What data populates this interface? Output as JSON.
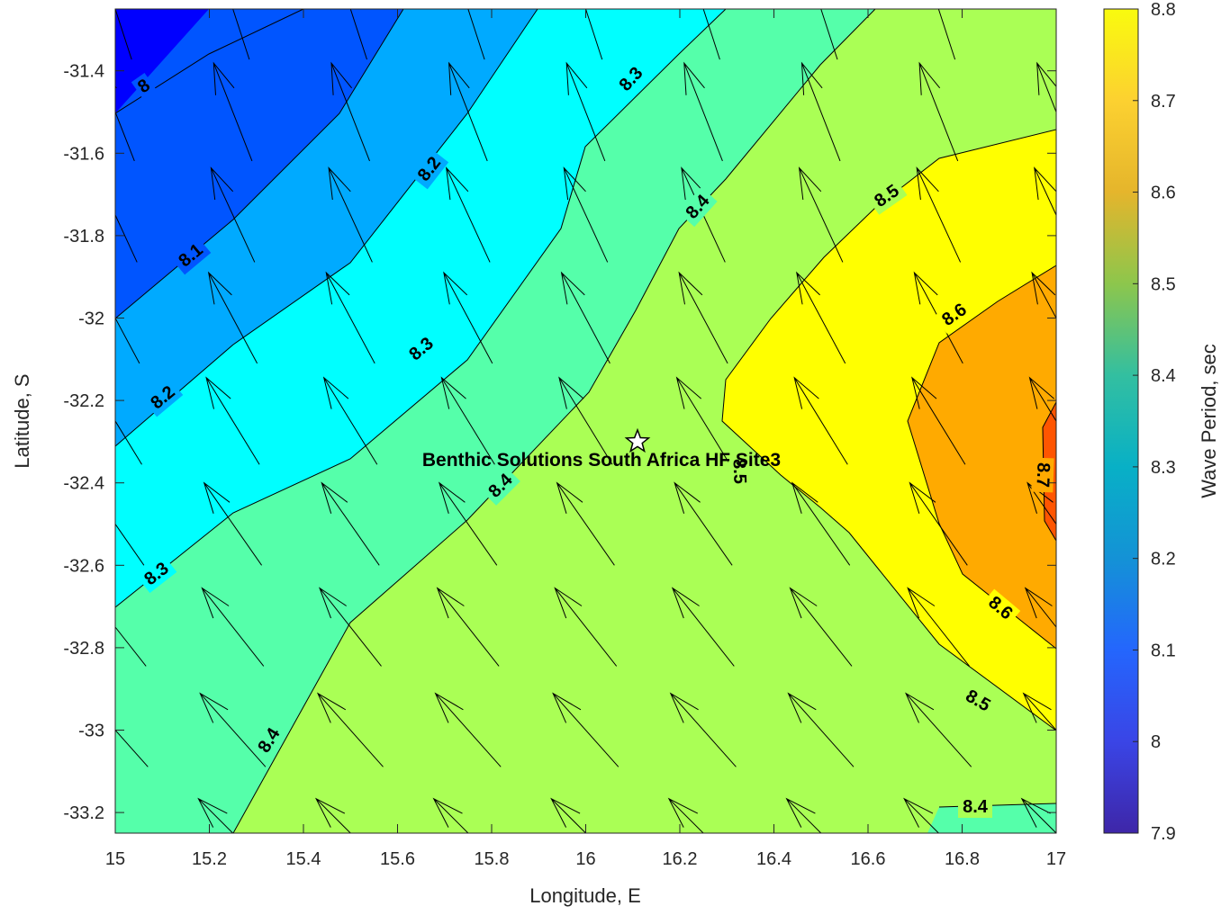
{
  "chart_data": {
    "type": "contour",
    "title": "",
    "xlabel": "Longitude, E",
    "ylabel": "Latitude, S",
    "colorbar_label": "Wave Period, sec",
    "xlim": [
      15,
      17
    ],
    "ylim": [
      -33.25,
      -31.25
    ],
    "x_ticks": [
      15,
      15.2,
      15.4,
      15.6,
      15.8,
      16,
      16.2,
      16.4,
      16.6,
      16.8,
      17
    ],
    "x_tick_labels": [
      "15",
      "15.2",
      "15.4",
      "15.6",
      "15.8",
      "16",
      "16.2",
      "16.4",
      "16.6",
      "16.8",
      "17"
    ],
    "y_ticks": [
      -31.4,
      -31.6,
      -31.8,
      -32,
      -32.2,
      -32.4,
      -32.6,
      -32.8,
      -33,
      -33.2
    ],
    "y_tick_labels": [
      "-31.4",
      "-31.6",
      "-31.8",
      "-32",
      "-32.2",
      "-32.4",
      "-32.6",
      "-32.8",
      "-33",
      "-33.2"
    ],
    "colorbar_range": [
      7.9,
      8.8
    ],
    "colorbar_ticks": [
      7.9,
      8,
      8.1,
      8.2,
      8.3,
      8.4,
      8.5,
      8.6,
      8.7,
      8.8
    ],
    "colorbar_tick_labels": [
      "7.9",
      "8",
      "8.1",
      "8.2",
      "8.3",
      "8.4",
      "8.5",
      "8.6",
      "8.7",
      "8.8"
    ],
    "colormap": "parula",
    "contour_levels": [
      8.0,
      8.1,
      8.2,
      8.3,
      8.4,
      8.5,
      8.6,
      8.7
    ],
    "contour_lines": [
      {
        "level": "8",
        "points": [
          [
            15.0,
            -31.5
          ],
          [
            15.2,
            -31.37
          ],
          [
            15.4,
            -31.25
          ]
        ]
      },
      {
        "level": "8.1",
        "points": [
          [
            15.0,
            -32.0
          ],
          [
            15.25,
            -31.76
          ],
          [
            15.48,
            -31.5
          ],
          [
            15.62,
            -31.25
          ]
        ]
      },
      {
        "level": "8.2",
        "points": [
          [
            15.0,
            -32.31
          ],
          [
            15.25,
            -32.06
          ],
          [
            15.5,
            -31.86
          ],
          [
            15.75,
            -31.5
          ],
          [
            15.9,
            -31.25
          ]
        ]
      },
      {
        "level": "8.3",
        "points": [
          [
            15.0,
            -32.7
          ],
          [
            15.25,
            -32.47
          ],
          [
            15.5,
            -32.34
          ],
          [
            15.75,
            -32.1
          ],
          [
            15.95,
            -31.78
          ],
          [
            16.0,
            -31.6
          ],
          [
            16.2,
            -31.38
          ],
          [
            16.3,
            -31.25
          ]
        ]
      },
      {
        "level": "8.4",
        "points": [
          [
            15.25,
            -33.25
          ],
          [
            15.5,
            -32.75
          ],
          [
            15.75,
            -32.56
          ],
          [
            16.0,
            -32.2
          ],
          [
            16.1,
            -32.0
          ],
          [
            16.2,
            -31.8
          ],
          [
            16.3,
            -31.68
          ],
          [
            16.5,
            -31.4
          ],
          [
            16.62,
            -31.25
          ]
        ]
      },
      {
        "level": "8.5",
        "points": [
          [
            16.5,
            -33.25
          ],
          [
            16.31,
            -32.87
          ],
          [
            16.3,
            -32.25
          ],
          [
            16.4,
            -32.0
          ],
          [
            16.5,
            -31.85
          ],
          [
            16.62,
            -31.73
          ],
          [
            16.75,
            -31.67
          ],
          [
            17.0,
            -31.54
          ]
        ]
      },
      {
        "level": "8.6",
        "points": [
          [
            17.0,
            -32.81
          ],
          [
            16.8,
            -32.62
          ],
          [
            16.7,
            -32.45
          ],
          [
            16.68,
            -32.25
          ],
          [
            16.75,
            -32.06
          ],
          [
            16.88,
            -31.96
          ],
          [
            17.0,
            -31.86
          ]
        ]
      },
      {
        "level": "8.7",
        "points": [
          [
            17.0,
            -32.55
          ],
          [
            16.98,
            -32.5
          ],
          [
            16.97,
            -32.27
          ],
          [
            17.0,
            -32.21
          ]
        ]
      },
      {
        "level": "8.5",
        "points": [
          [
            17.0,
            -33.01
          ],
          [
            16.75,
            -32.8
          ],
          [
            16.62,
            -32.62
          ],
          [
            16.55,
            -32.53
          ],
          [
            16.45,
            -32.38
          ],
          [
            16.4,
            -32.3
          ]
        ]
      },
      {
        "level": "8.4",
        "points": [
          [
            16.75,
            -33.19
          ],
          [
            17.0,
            -33.18
          ]
        ]
      }
    ],
    "contour_labels": [
      "8",
      "8.1",
      "8.2",
      "8.2",
      "8.3",
      "8.3",
      "8.3",
      "8.4",
      "8.4",
      "8.4",
      "8.5",
      "8.5",
      "8.5",
      "8.6",
      "8.6",
      "8.7",
      "8.4"
    ],
    "vector_field": {
      "x": [
        15.0,
        15.25,
        15.5,
        15.75,
        16.0,
        16.25,
        16.5,
        16.75,
        17.0
      ],
      "y": [
        -31.25,
        -31.5,
        -31.75,
        -32.0,
        -32.25,
        -32.5,
        -32.75,
        -33.0,
        -33.25
      ],
      "direction": "toward north-northwest, rotating toward northwest further south"
    },
    "site": {
      "name": "Benthic Solutions South Africa HF Site3",
      "lon": 16.11,
      "lat": -32.3
    }
  }
}
